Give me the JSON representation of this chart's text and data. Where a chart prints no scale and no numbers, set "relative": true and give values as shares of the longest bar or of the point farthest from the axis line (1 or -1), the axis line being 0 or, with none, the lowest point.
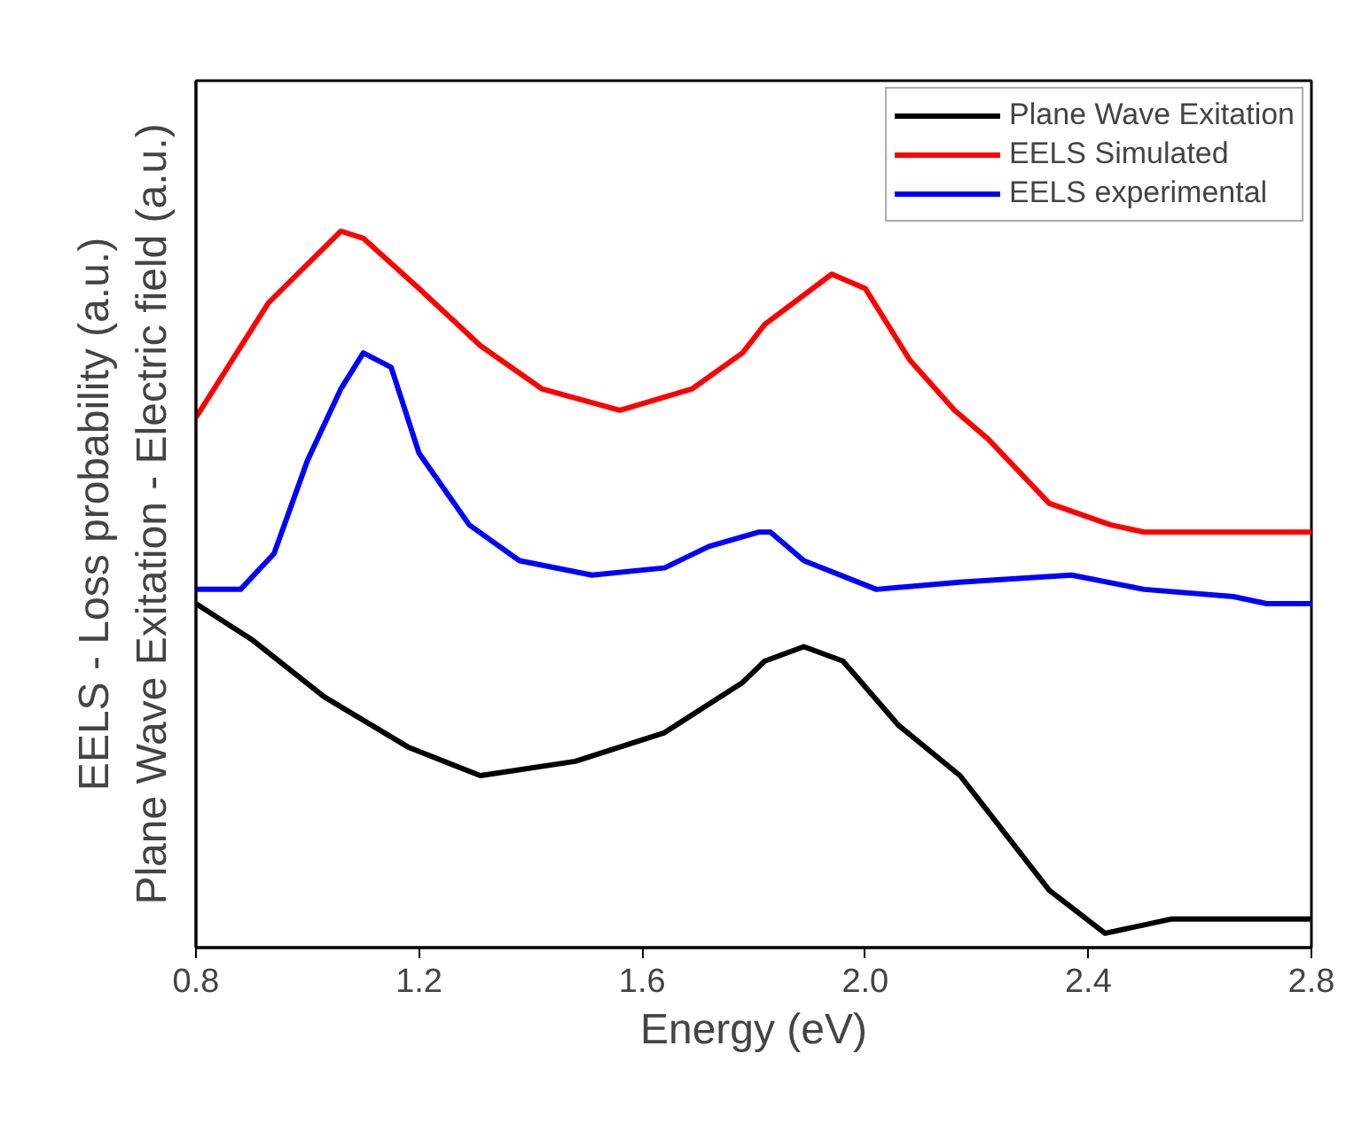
{
  "chart_data": {
    "type": "line",
    "relative": true,
    "xlabel": "Energy (eV)",
    "ylabel": "EELS - Loss probability (a.u.)\nPlane Wave Exitation - Electric field (a.u.)",
    "xlim": [
      0.8,
      2.8
    ],
    "xticks": [
      {
        "value": 0.8,
        "label": "0.8"
      },
      {
        "value": 1.2,
        "label": "1.2"
      },
      {
        "value": 1.6,
        "label": "1.6"
      },
      {
        "value": 2.0,
        "label": "2.0"
      },
      {
        "value": 2.4,
        "label": "2.4"
      },
      {
        "value": 2.8,
        "label": "2.8"
      }
    ],
    "grid": false,
    "legend": "top right",
    "marker": "none",
    "line_style": "solid",
    "series": [
      {
        "name": "Plane Wave Exitation",
        "color": "#000000",
        "x": [
          0.8,
          0.9,
          1.03,
          1.18,
          1.31,
          1.48,
          1.64,
          1.78,
          1.82,
          1.89,
          1.96,
          2.06,
          2.17,
          2.22,
          2.33,
          2.43,
          2.55,
          2.8
        ],
        "values": [
          0.48,
          0.43,
          0.35,
          0.28,
          0.24,
          0.26,
          0.3,
          0.37,
          0.4,
          0.42,
          0.4,
          0.31,
          0.24,
          0.19,
          0.08,
          0.02,
          0.04,
          0.04
        ]
      },
      {
        "name": "EELS Simulated",
        "color": "#ff0000",
        "x": [
          0.8,
          0.93,
          1.06,
          1.1,
          1.2,
          1.31,
          1.42,
          1.56,
          1.69,
          1.78,
          1.82,
          1.94,
          2.0,
          2.08,
          2.16,
          2.22,
          2.33,
          2.44,
          2.5,
          2.8
        ],
        "values": [
          0.74,
          0.9,
          1.0,
          0.99,
          0.92,
          0.84,
          0.78,
          0.75,
          0.78,
          0.83,
          0.87,
          0.94,
          0.92,
          0.82,
          0.75,
          0.71,
          0.62,
          0.59,
          0.58,
          0.58
        ]
      },
      {
        "name": "EELS experimental",
        "color": "#0000ff",
        "x": [
          0.8,
          0.83,
          0.88,
          0.94,
          1.0,
          1.06,
          1.1,
          1.15,
          1.2,
          1.29,
          1.38,
          1.51,
          1.64,
          1.72,
          1.81,
          1.83,
          1.89,
          2.02,
          2.17,
          2.37,
          2.5,
          2.66,
          2.72,
          2.8
        ],
        "values": [
          0.5,
          0.5,
          0.5,
          0.55,
          0.68,
          0.78,
          0.83,
          0.81,
          0.69,
          0.59,
          0.54,
          0.52,
          0.53,
          0.56,
          0.58,
          0.58,
          0.54,
          0.5,
          0.51,
          0.52,
          0.5,
          0.49,
          0.48,
          0.48
        ]
      }
    ]
  }
}
